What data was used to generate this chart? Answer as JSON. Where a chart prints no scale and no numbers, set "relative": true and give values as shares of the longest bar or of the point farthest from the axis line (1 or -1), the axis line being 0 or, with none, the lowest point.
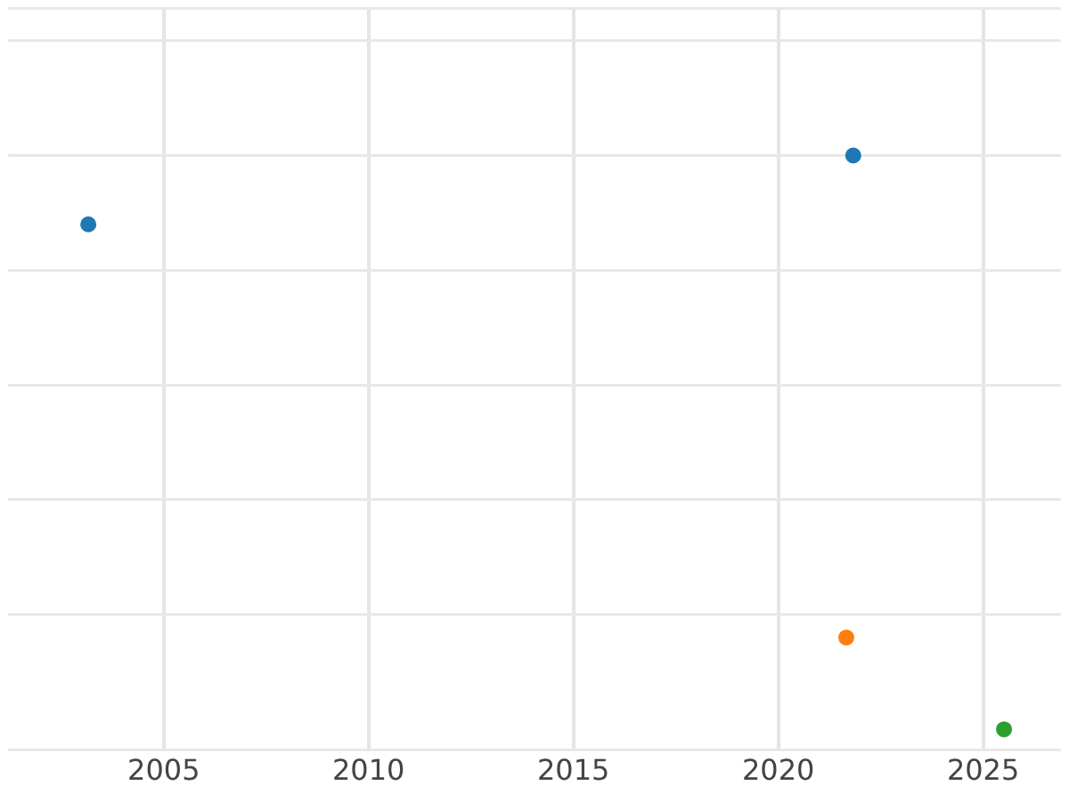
{
  "chart_data": {
    "type": "scatter",
    "relative": true,
    "series": [
      {
        "color": "#1f77b4",
        "x": [
          2003.16,
          2021.83
        ],
        "values": [
          0.88,
          1
        ]
      },
      {
        "color": "#ff7f0e",
        "x": [
          2021.66
        ],
        "values": [
          0.16
        ]
      },
      {
        "color": "#2ca02c",
        "x": [
          2025.51
        ],
        "values": [
          0
        ]
      }
    ],
    "xlim": [
      2001.2,
      2026.9
    ],
    "xticks": [
      2005,
      2010,
      2015,
      2020,
      2025
    ],
    "grid": true,
    "legend": false,
    "marker": "circle"
  }
}
